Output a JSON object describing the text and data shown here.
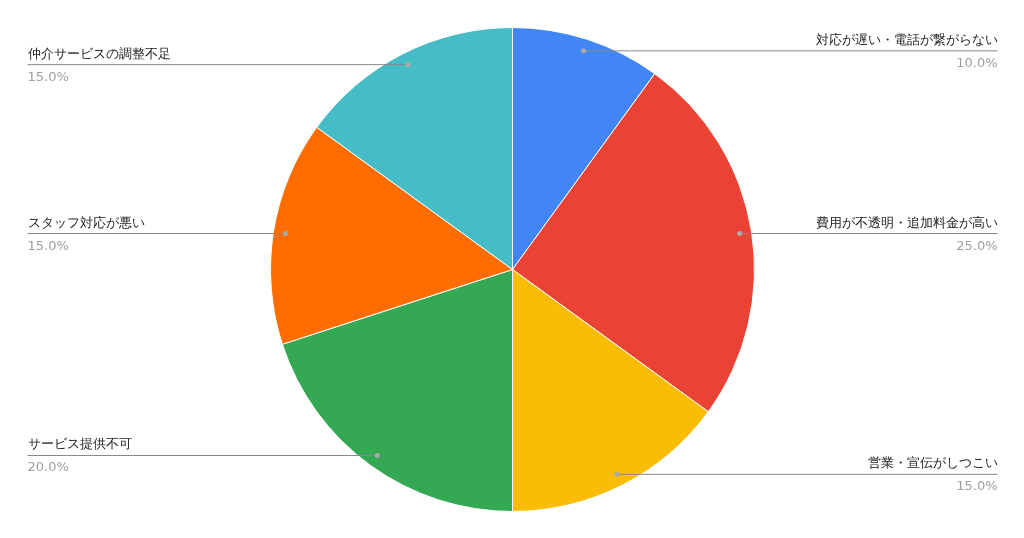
{
  "chart_data": {
    "type": "pie",
    "categories": [
      "対応が遅い・電話が繋がらない",
      "費用が不透明・追加料金が高い",
      "営業・宣伝がしつこい",
      "サービス提供不可",
      "スタッフ対応が悪い",
      "仲介サービスの調整不足"
    ],
    "values": [
      10,
      25,
      15,
      20,
      15,
      15
    ],
    "colors": [
      "#4285f4",
      "#ea4335",
      "#fbbc04",
      "#34a853",
      "#ff6d01",
      "#46bdc6"
    ],
    "value_labels": [
      "10.0%",
      "25.0%",
      "15.0%",
      "20.0%",
      "15.0%",
      "15.0%"
    ]
  }
}
